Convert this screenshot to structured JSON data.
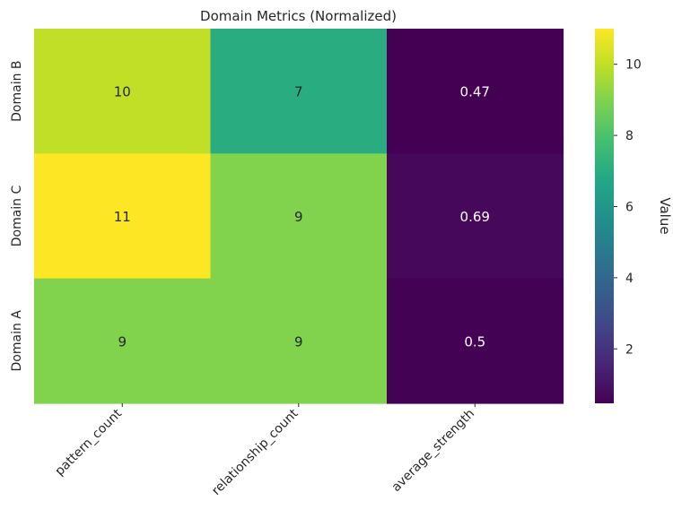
{
  "chart_data": {
    "type": "heatmap",
    "title": "Domain Metrics (Normalized)",
    "xlabel": "",
    "ylabel": "",
    "x_categories": [
      "pattern_count",
      "relationship_count",
      "average_strength"
    ],
    "y_categories": [
      "Domain B",
      "Domain C",
      "Domain A"
    ],
    "values": [
      [
        10,
        7,
        0.47
      ],
      [
        11,
        9,
        0.69
      ],
      [
        9,
        9,
        0.5
      ]
    ],
    "value_labels": [
      [
        "10",
        "7",
        "0.47"
      ],
      [
        "11",
        "9",
        "0.69"
      ],
      [
        "9",
        "9",
        "0.5"
      ]
    ],
    "colormap": "viridis",
    "vmin": 0.47,
    "vmax": 11,
    "colorbar": {
      "label": "Value",
      "ticks": [
        2,
        4,
        6,
        8,
        10
      ]
    },
    "annotated": true,
    "grid": false
  }
}
